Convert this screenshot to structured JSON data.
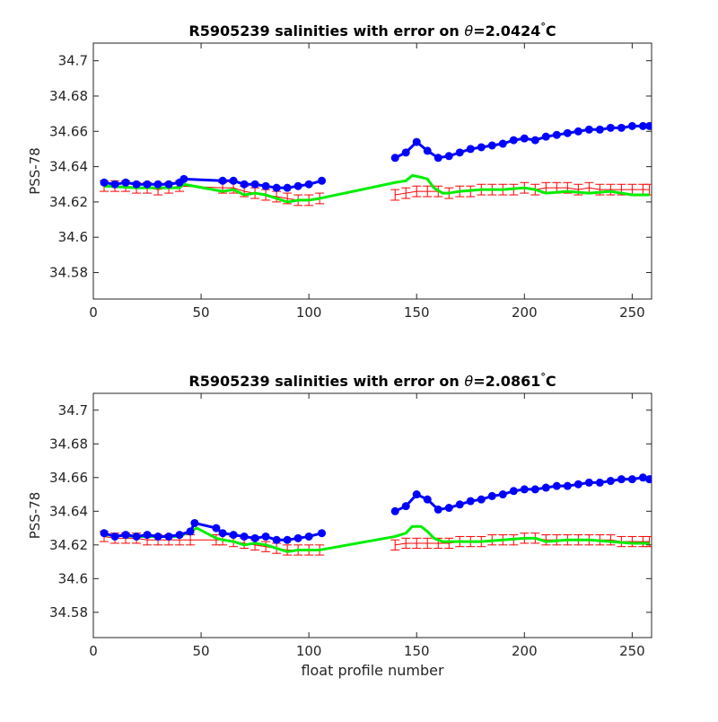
{
  "chart_data": [
    {
      "type": "scatter",
      "title_prefix": "R5905239 salinities with error on ",
      "title_theta": "θ",
      "title_value": "=2.0424",
      "title_deg": "°",
      "title_unit": "C",
      "xlabel": "",
      "ylabel": "PSS-78",
      "xlim": [
        0,
        259
      ],
      "ylim": [
        34.565,
        34.71
      ],
      "xticks": [
        0,
        50,
        100,
        150,
        200,
        250
      ],
      "xtick_labels": [
        "0",
        "50",
        "100",
        "150",
        "200",
        "250"
      ],
      "yticks": [
        34.58,
        34.6,
        34.62,
        34.64,
        34.66,
        34.68,
        34.7
      ],
      "ytick_labels": [
        "34.58",
        "34.6",
        "34.62",
        "34.64",
        "34.66",
        "34.68",
        "34.7"
      ],
      "grid": false,
      "series": [
        {
          "role": "float salinity (blue)",
          "color": "#0000ff",
          "x": [
            5,
            10,
            15,
            20,
            25,
            30,
            35,
            40,
            42,
            60,
            65,
            70,
            75,
            80,
            85,
            90,
            95,
            100,
            106,
            140,
            145,
            150,
            155,
            160,
            165,
            170,
            175,
            180,
            185,
            190,
            195,
            200,
            205,
            210,
            215,
            220,
            225,
            230,
            235,
            240,
            245,
            250,
            255,
            258
          ],
          "y": [
            34.631,
            34.63,
            34.631,
            34.63,
            34.63,
            34.63,
            34.63,
            34.631,
            34.633,
            34.632,
            34.632,
            34.63,
            34.63,
            34.629,
            34.628,
            34.628,
            34.629,
            34.63,
            34.632,
            34.645,
            34.648,
            34.654,
            34.649,
            34.645,
            34.646,
            34.648,
            34.65,
            34.651,
            34.652,
            34.653,
            34.655,
            34.656,
            34.655,
            34.657,
            34.658,
            34.659,
            34.66,
            34.661,
            34.661,
            34.662,
            34.662,
            34.663,
            34.663,
            34.663
          ]
        },
        {
          "role": "mapped salinity (green)",
          "color": "#00ee00",
          "x": [
            5,
            20,
            40,
            42,
            60,
            65,
            70,
            75,
            80,
            85,
            90,
            95,
            100,
            105,
            140,
            145,
            148,
            152,
            155,
            158,
            162,
            165,
            170,
            180,
            190,
            200,
            205,
            210,
            220,
            230,
            240,
            250,
            258
          ],
          "y": [
            34.629,
            34.628,
            34.628,
            34.63,
            34.626,
            34.627,
            34.624,
            34.625,
            34.624,
            34.622,
            34.62,
            34.621,
            34.621,
            34.622,
            34.631,
            34.632,
            34.635,
            34.634,
            34.633,
            34.628,
            34.625,
            34.625,
            34.626,
            34.627,
            34.627,
            34.628,
            34.627,
            34.625,
            34.626,
            34.625,
            34.626,
            34.624,
            34.624
          ]
        },
        {
          "role": "salinity with error bars (red)",
          "color": "#ff0000",
          "x": [
            5,
            10,
            15,
            20,
            25,
            30,
            35,
            40,
            60,
            65,
            70,
            75,
            80,
            85,
            90,
            95,
            100,
            105,
            140,
            145,
            150,
            155,
            160,
            165,
            170,
            175,
            180,
            185,
            190,
            195,
            200,
            205,
            210,
            215,
            220,
            225,
            230,
            235,
            240,
            245,
            250,
            255,
            258
          ],
          "y": [
            34.629,
            34.629,
            34.629,
            34.628,
            34.628,
            34.627,
            34.628,
            34.629,
            34.628,
            34.628,
            34.626,
            34.625,
            34.624,
            34.623,
            34.622,
            34.621,
            34.621,
            34.622,
            34.624,
            34.625,
            34.626,
            34.626,
            34.626,
            34.625,
            34.626,
            34.626,
            34.627,
            34.627,
            34.627,
            34.627,
            34.628,
            34.627,
            34.628,
            34.628,
            34.628,
            34.627,
            34.628,
            34.627,
            34.627,
            34.627,
            34.627,
            34.627,
            34.627
          ],
          "err": 0.003
        }
      ]
    },
    {
      "type": "scatter",
      "title_prefix": "R5905239 salinities with error on ",
      "title_theta": "θ",
      "title_value": "=2.0861",
      "title_deg": "°",
      "title_unit": "C",
      "xlabel": "float profile number",
      "ylabel": "PSS-78",
      "xlim": [
        0,
        259
      ],
      "ylim": [
        34.565,
        34.71
      ],
      "xticks": [
        0,
        50,
        100,
        150,
        200,
        250
      ],
      "xtick_labels": [
        "0",
        "50",
        "100",
        "150",
        "200",
        "250"
      ],
      "yticks": [
        34.58,
        34.6,
        34.62,
        34.64,
        34.66,
        34.68,
        34.7
      ],
      "ytick_labels": [
        "34.58",
        "34.6",
        "34.62",
        "34.64",
        "34.66",
        "34.68",
        "34.7"
      ],
      "grid": false,
      "series": [
        {
          "role": "float salinity (blue)",
          "color": "#0000ff",
          "x": [
            5,
            10,
            15,
            20,
            25,
            30,
            35,
            40,
            45,
            47,
            57,
            60,
            65,
            70,
            75,
            80,
            85,
            90,
            95,
            100,
            106,
            140,
            145,
            150,
            155,
            160,
            165,
            170,
            175,
            180,
            185,
            190,
            195,
            200,
            205,
            210,
            215,
            220,
            225,
            230,
            235,
            240,
            245,
            250,
            255,
            258
          ],
          "y": [
            34.627,
            34.625,
            34.626,
            34.625,
            34.626,
            34.625,
            34.625,
            34.626,
            34.628,
            34.633,
            34.63,
            34.627,
            34.626,
            34.625,
            34.624,
            34.625,
            34.623,
            34.623,
            34.624,
            34.625,
            34.627,
            34.64,
            34.643,
            34.65,
            34.647,
            34.641,
            34.642,
            34.644,
            34.646,
            34.647,
            34.649,
            34.65,
            34.652,
            34.653,
            34.653,
            34.654,
            34.655,
            34.655,
            34.656,
            34.657,
            34.657,
            34.658,
            34.659,
            34.659,
            34.66,
            34.659
          ]
        },
        {
          "role": "mapped salinity (green)",
          "color": "#00ee00",
          "x": [
            5,
            20,
            40,
            45,
            48,
            57,
            60,
            65,
            70,
            75,
            80,
            85,
            90,
            95,
            100,
            105,
            140,
            145,
            148,
            152,
            155,
            158,
            162,
            170,
            180,
            190,
            200,
            205,
            210,
            220,
            230,
            240,
            250,
            258
          ],
          "y": [
            34.626,
            34.625,
            34.625,
            34.628,
            34.63,
            34.624,
            34.623,
            34.622,
            34.62,
            34.621,
            34.62,
            34.618,
            34.616,
            34.617,
            34.617,
            34.617,
            34.625,
            34.627,
            34.631,
            34.631,
            34.628,
            34.624,
            34.622,
            34.622,
            34.622,
            34.623,
            34.624,
            34.624,
            34.622,
            34.623,
            34.623,
            34.622,
            34.621,
            34.621
          ]
        },
        {
          "role": "salinity with error bars (red)",
          "color": "#ff0000",
          "x": [
            5,
            10,
            15,
            20,
            25,
            30,
            35,
            40,
            45,
            57,
            60,
            65,
            70,
            75,
            80,
            85,
            90,
            95,
            100,
            105,
            140,
            145,
            150,
            155,
            160,
            165,
            170,
            175,
            180,
            185,
            190,
            195,
            200,
            205,
            210,
            215,
            220,
            225,
            230,
            235,
            240,
            245,
            250,
            255,
            258
          ],
          "y": [
            34.625,
            34.624,
            34.624,
            34.624,
            34.623,
            34.623,
            34.623,
            34.623,
            34.623,
            34.623,
            34.623,
            34.622,
            34.621,
            34.62,
            34.619,
            34.618,
            34.617,
            34.617,
            34.617,
            34.617,
            34.62,
            34.621,
            34.621,
            34.621,
            34.621,
            34.621,
            34.622,
            34.622,
            34.622,
            34.623,
            34.623,
            34.623,
            34.624,
            34.624,
            34.623,
            34.623,
            34.623,
            34.623,
            34.623,
            34.623,
            34.623,
            34.622,
            34.622,
            34.622,
            34.622
          ],
          "err": 0.003
        }
      ]
    }
  ]
}
